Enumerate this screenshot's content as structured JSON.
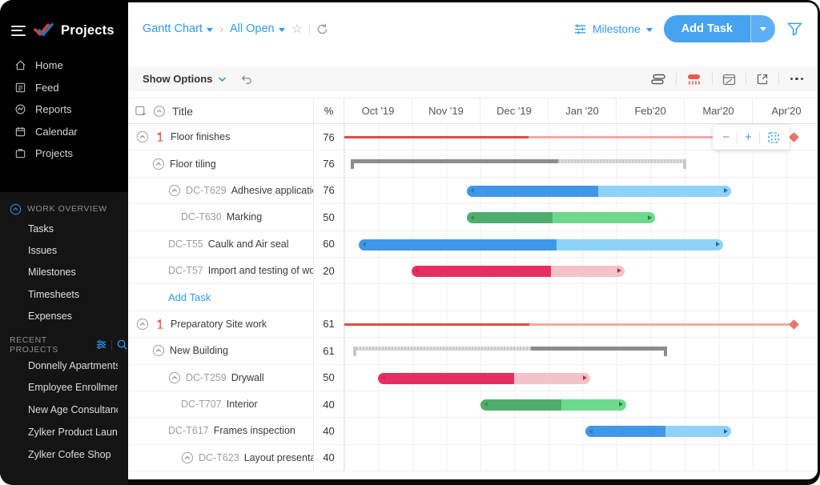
{
  "topbar": {
    "view_label": "Gantt Chart",
    "filter_label": "All Open",
    "group_label": "Milestone",
    "add_task_label": "Add Task"
  },
  "options_bar": {
    "show_options_label": "Show Options"
  },
  "grid": {
    "title_header": "Title",
    "percent_header": "%",
    "months": [
      "Oct '19",
      "Nov '19",
      "Dec '19",
      "Jan '20",
      "Feb'20",
      "Mar'20",
      "Apr'20"
    ]
  },
  "zoom_controls": {
    "zoom_out": "−",
    "zoom_in": "+",
    "fit_icon": "fit-screen-icon"
  },
  "sidebar": {
    "product_name": "Projects",
    "menu": [
      {
        "icon": "home-icon",
        "label": "Home"
      },
      {
        "icon": "feed-icon",
        "label": "Feed"
      },
      {
        "icon": "reports-icon",
        "label": "Reports"
      },
      {
        "icon": "calendar-icon",
        "label": "Calendar"
      },
      {
        "icon": "projects-icon",
        "label": "Projects"
      }
    ],
    "work_overview": {
      "title": "WORK OVERVIEW",
      "items": [
        "Tasks",
        "Issues",
        "Milestones",
        "Timesheets",
        "Expenses"
      ]
    },
    "recent_projects": {
      "title": "RECENT PROJECTS",
      "items": [
        "Donnelly Apartments",
        "Employee Enrollment",
        "New Age Consultancy",
        "Zylker Product Launch",
        "Zylker Cofee Shop"
      ]
    }
  },
  "palette": {
    "accent": "#2f9bf2",
    "button": "#45a3f0",
    "blue": {
      "dark": "#3f97e8",
      "light": "#8fd2f7",
      "arrow": "#2268b8"
    },
    "green": {
      "dark": "#4fae6d",
      "light": "#6ed98d",
      "arrow": "#2e7d4a"
    },
    "pink": {
      "dark": "#e62e63",
      "light": "#f4c3c9",
      "arrow": "#c42646"
    },
    "red": {
      "dark": "#e64a3e",
      "light": "#f3a9a2",
      "arrow": "#e8766b"
    },
    "gray": {
      "dark": "#8c8c8c",
      "light": "#c9c9c9",
      "arrow": "#8c8c8c"
    }
  },
  "rows": [
    {
      "type": "milestone",
      "level": 0,
      "chevron": true,
      "flag": true,
      "name": "Floor finishes",
      "pct": "76",
      "bar": {
        "kind": "line",
        "color": "red",
        "start": 0,
        "end": 562,
        "split": 230,
        "diamond": true
      }
    },
    {
      "type": "tasklist",
      "level": 1,
      "chevron": true,
      "name": "Floor tiling",
      "pct": "76",
      "bar": {
        "kind": "summary",
        "color": "gray",
        "start": 8,
        "end": 427,
        "split": 267,
        "dark_first": true
      }
    },
    {
      "type": "task",
      "level": 2,
      "chevron": true,
      "id": "DC-T629",
      "name": "Adhesive application",
      "pct": "76",
      "bar": {
        "kind": "task",
        "color": "blue",
        "start": 153,
        "end": 483,
        "split": 317
      }
    },
    {
      "type": "task",
      "level": 3,
      "id": "DC-T630",
      "name": "Marking",
      "pct": "50",
      "bar": {
        "kind": "task",
        "color": "green",
        "start": 153,
        "end": 388,
        "split": 260
      }
    },
    {
      "type": "task",
      "level": 2,
      "id": "DC-T55",
      "name": "Caulk and Air seal",
      "pct": "60",
      "bar": {
        "kind": "task",
        "color": "blue",
        "start": 18,
        "end": 473,
        "split": 265
      }
    },
    {
      "type": "task",
      "level": 2,
      "id": "DC-T57",
      "name": "Import and testing of woo..",
      "pct": "20",
      "bar": {
        "kind": "task",
        "color": "pink",
        "start": 84,
        "end": 350,
        "split": 258
      }
    },
    {
      "type": "add-task",
      "level": 2,
      "name": "Add Task",
      "pct": ""
    },
    {
      "type": "milestone",
      "level": 0,
      "chevron": true,
      "flag": true,
      "name": "Preparatory Site work",
      "pct": "61",
      "bar": {
        "kind": "line",
        "color": "red",
        "start": 0,
        "end": 562,
        "split": 231,
        "diamond": true
      }
    },
    {
      "type": "tasklist",
      "level": 1,
      "chevron": true,
      "name": "New Building",
      "pct": "61",
      "bar": {
        "kind": "summary",
        "color": "gray",
        "start": 11,
        "end": 403,
        "split": 233,
        "dark_first": false
      }
    },
    {
      "type": "task",
      "level": 2,
      "chevron": true,
      "id": "DC-T259",
      "name": "Drywall",
      "pct": "50",
      "bar": {
        "kind": "task",
        "color": "pink",
        "start": 42,
        "end": 307,
        "split": 212
      }
    },
    {
      "type": "task",
      "level": 3,
      "id": "DC-T707",
      "name": "Interior",
      "pct": "40",
      "bar": {
        "kind": "task",
        "color": "green",
        "start": 170,
        "end": 352,
        "split": 271
      }
    },
    {
      "type": "task",
      "level": 2,
      "id": "DC-T617",
      "name": "Frames inspection",
      "pct": "40",
      "bar": {
        "kind": "task",
        "color": "blue",
        "start": 301,
        "end": 483,
        "split": 401
      }
    },
    {
      "type": "task",
      "level": 3,
      "chevron": true,
      "id": "DC-T623",
      "name": "Layout presentation",
      "pct": "40",
      "bar": null
    }
  ]
}
